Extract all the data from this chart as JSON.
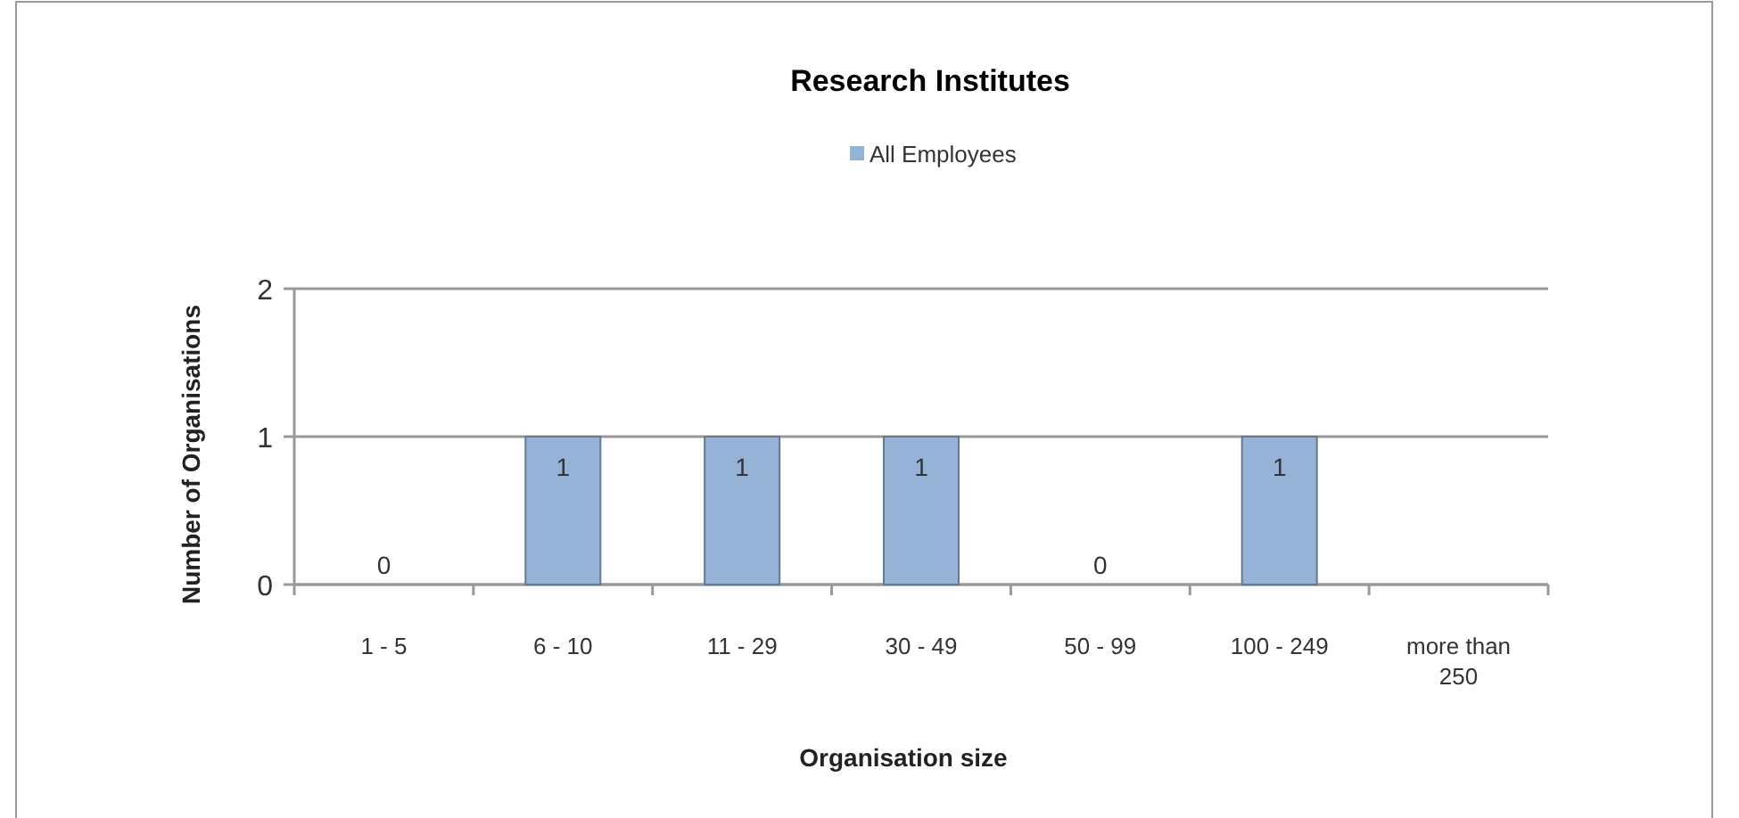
{
  "chart_data": {
    "type": "bar",
    "title": "Research Institutes",
    "xlabel": "Organisation size",
    "ylabel": "Number of Organisations",
    "categories": [
      "1 - 5",
      "6 - 10",
      "11 - 29",
      "30 - 49",
      "50 - 99",
      "100 - 249",
      "more than 250"
    ],
    "series": [
      {
        "name": "All Employees",
        "color": "#95b3d7",
        "values": [
          0,
          1,
          1,
          1,
          0,
          1,
          null
        ]
      }
    ],
    "ylim": [
      0,
      2
    ],
    "yticks": [
      0,
      1,
      2
    ],
    "grid": "y",
    "legend": "top",
    "data_labels": true
  }
}
